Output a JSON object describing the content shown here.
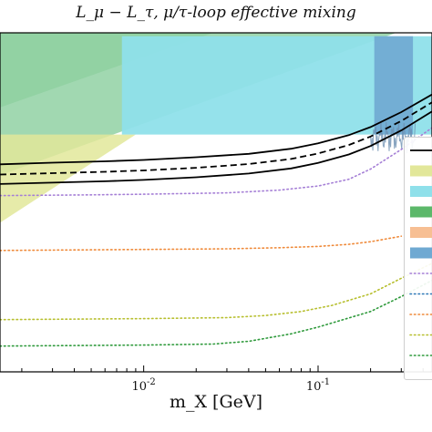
{
  "title": "L_μ − L_τ, μ/τ-loop effective mixing",
  "xlabel": "m_X [GeV]",
  "colors": {
    "dark_green": "#5cb86a",
    "light_green": "#97d4a8",
    "cyan": "#8fe0ea",
    "yellow": "#e2e79a",
    "orange": "#f7bf93",
    "blue": "#6fa9d2",
    "purple_dot": "#a57fd6",
    "blue_dot": "#2f79b7",
    "orange_dot": "#ef8a3a",
    "yellow_dot": "#b7bf2f",
    "green_dot": "#2f9a3c",
    "black": "#000000"
  },
  "chart_data": {
    "type": "line",
    "title": "L_μ − L_τ, μ/τ-loop effective mixing",
    "xlabel": "m_X [GeV]",
    "ylabel": "",
    "xscale": "log",
    "xlim": [
      0.0015,
      0.45
    ],
    "ylim": [
      0,
      1
    ],
    "x_ticks": [
      {
        "value": 0.01,
        "label": "10^-2"
      },
      {
        "value": 0.1,
        "label": "10^-1"
      }
    ],
    "grid": false,
    "legend_position": "right",
    "regions": [
      {
        "color": "dark_green",
        "x": [
          0.0015,
          0.025
        ],
        "upper": [
          1.0,
          1.0
        ],
        "lower": [
          0.78,
          1.0
        ]
      },
      {
        "color": "light_green",
        "x": [
          0.0015,
          0.28
        ],
        "upper": [
          1.0,
          1.0
        ],
        "lower": [
          0.58,
          1.0
        ]
      },
      {
        "color": "yellow",
        "x": [
          0.0015,
          0.009
        ],
        "upper": [
          0.7,
          0.7
        ],
        "lower": [
          0.44,
          0.7
        ]
      },
      {
        "color": "cyan",
        "x": [
          0.0075,
          0.45
        ],
        "upper": [
          0.99,
          0.99
        ],
        "lower": [
          0.7,
          0.7
        ]
      },
      {
        "color": "blue",
        "x": [
          0.21,
          0.35
        ],
        "upper": [
          0.99,
          0.99
        ],
        "lower": [
          0.7,
          0.7
        ]
      }
    ],
    "series": [
      {
        "style": "solid",
        "color": "black",
        "x": [
          0.0015,
          0.003,
          0.006,
          0.01,
          0.02,
          0.04,
          0.07,
          0.1,
          0.15,
          0.2,
          0.3,
          0.45
        ],
        "y": [
          0.612,
          0.617,
          0.621,
          0.625,
          0.633,
          0.643,
          0.658,
          0.674,
          0.698,
          0.722,
          0.766,
          0.818
        ]
      },
      {
        "style": "dashed",
        "color": "black",
        "x": [
          0.0015,
          0.003,
          0.006,
          0.01,
          0.02,
          0.04,
          0.07,
          0.1,
          0.15,
          0.2,
          0.3,
          0.45
        ],
        "y": [
          0.582,
          0.586,
          0.59,
          0.594,
          0.602,
          0.613,
          0.628,
          0.644,
          0.669,
          0.694,
          0.74,
          0.795
        ]
      },
      {
        "style": "solid",
        "color": "black",
        "x": [
          0.0015,
          0.003,
          0.006,
          0.01,
          0.02,
          0.04,
          0.07,
          0.1,
          0.15,
          0.2,
          0.3,
          0.45
        ],
        "y": [
          0.554,
          0.558,
          0.562,
          0.566,
          0.574,
          0.585,
          0.6,
          0.616,
          0.641,
          0.666,
          0.712,
          0.768
        ]
      },
      {
        "style": "dotted",
        "color": "purple_dot",
        "x": [
          0.0015,
          0.005,
          0.01,
          0.03,
          0.06,
          0.1,
          0.15,
          0.2,
          0.3,
          0.45
        ],
        "y": [
          0.52,
          0.522,
          0.524,
          0.528,
          0.536,
          0.548,
          0.568,
          0.598,
          0.656,
          0.72
        ]
      },
      {
        "style": "dotted",
        "color": "orange_dot",
        "x": [
          0.0015,
          0.005,
          0.01,
          0.03,
          0.06,
          0.1,
          0.15,
          0.2,
          0.3
        ],
        "y": [
          0.358,
          0.36,
          0.361,
          0.363,
          0.366,
          0.37,
          0.376,
          0.384,
          0.4
        ]
      },
      {
        "style": "dotted",
        "color": "yellow_dot",
        "x": [
          0.0015,
          0.005,
          0.01,
          0.03,
          0.05,
          0.08,
          0.12,
          0.2,
          0.3,
          0.45
        ],
        "y": [
          0.154,
          0.156,
          0.157,
          0.16,
          0.166,
          0.178,
          0.196,
          0.23,
          0.276,
          0.32
        ]
      },
      {
        "style": "dotted",
        "color": "green_dot",
        "x": [
          0.0015,
          0.005,
          0.01,
          0.025,
          0.04,
          0.07,
          0.1,
          0.2,
          0.3,
          0.45
        ],
        "y": [
          0.076,
          0.078,
          0.079,
          0.082,
          0.09,
          0.112,
          0.132,
          0.178,
          0.222,
          0.27
        ]
      }
    ],
    "legend": [
      {
        "kind": "line",
        "style": "solid",
        "color": "black"
      },
      {
        "kind": "patch",
        "color": "yellow"
      },
      {
        "kind": "patch",
        "color": "cyan"
      },
      {
        "kind": "patch",
        "color": "dark_green"
      },
      {
        "kind": "patch",
        "color": "orange"
      },
      {
        "kind": "patch",
        "color": "blue"
      },
      {
        "kind": "line",
        "style": "dotted",
        "color": "purple_dot"
      },
      {
        "kind": "line",
        "style": "dotted",
        "color": "blue_dot"
      },
      {
        "kind": "line",
        "style": "dotted",
        "color": "orange_dot"
      },
      {
        "kind": "line",
        "style": "dotted",
        "color": "yellow_dot"
      },
      {
        "kind": "line",
        "style": "dotted",
        "color": "green_dot"
      }
    ]
  }
}
